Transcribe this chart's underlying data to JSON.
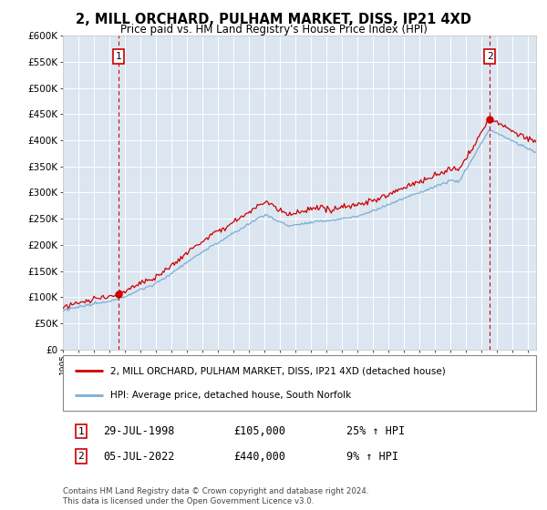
{
  "title": "2, MILL ORCHARD, PULHAM MARKET, DISS, IP21 4XD",
  "subtitle": "Price paid vs. HM Land Registry's House Price Index (HPI)",
  "ylabel_ticks": [
    "£0",
    "£50K",
    "£100K",
    "£150K",
    "£200K",
    "£250K",
    "£300K",
    "£350K",
    "£400K",
    "£450K",
    "£500K",
    "£550K",
    "£600K"
  ],
  "ylim": [
    0,
    600000
  ],
  "yticks": [
    0,
    50000,
    100000,
    150000,
    200000,
    250000,
    300000,
    350000,
    400000,
    450000,
    500000,
    550000,
    600000
  ],
  "xlim_start": 1995.0,
  "xlim_end": 2025.5,
  "plot_bg_color": "#dce6f1",
  "fig_bg_color": "#ffffff",
  "grid_color": "#ffffff",
  "red_color": "#cc0000",
  "blue_color": "#7aaed6",
  "sale1_year": 1998.57,
  "sale1_price": 105000,
  "sale2_year": 2022.51,
  "sale2_price": 440000,
  "legend_label_red": "2, MILL ORCHARD, PULHAM MARKET, DISS, IP21 4XD (detached house)",
  "legend_label_blue": "HPI: Average price, detached house, South Norfolk",
  "sale1_date": "29-JUL-1998",
  "sale1_amount": "£105,000",
  "sale1_pct": "25% ↑ HPI",
  "sale2_date": "05-JUL-2022",
  "sale2_amount": "£440,000",
  "sale2_pct": "9% ↑ HPI",
  "footer": "Contains HM Land Registry data © Crown copyright and database right 2024.\nThis data is licensed under the Open Government Licence v3.0."
}
